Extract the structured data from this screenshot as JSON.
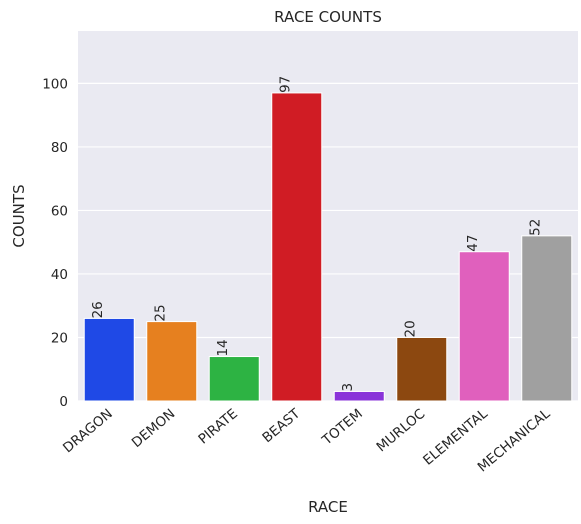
{
  "chart_data": {
    "type": "bar",
    "title": "RACE COUNTS",
    "xlabel": "RACE",
    "ylabel": "COUNTS",
    "categories": [
      "DRAGON",
      "DEMON",
      "PIRATE",
      "BEAST",
      "TOTEM",
      "MURLOC",
      "ELEMENTAL",
      "MECHANICAL"
    ],
    "values": [
      26,
      25,
      14,
      97,
      3,
      20,
      47,
      52
    ],
    "colors": [
      "#1f49e6",
      "#e6801f",
      "#2db343",
      "#d01c24",
      "#8a33d9",
      "#8c4810",
      "#e060bd",
      "#a0a0a0"
    ],
    "ylim": [
      0,
      116.5
    ],
    "yticks": [
      0,
      20,
      40,
      60,
      80,
      100
    ],
    "grid": true,
    "background": "#eaeaf2",
    "data_labels": true
  }
}
